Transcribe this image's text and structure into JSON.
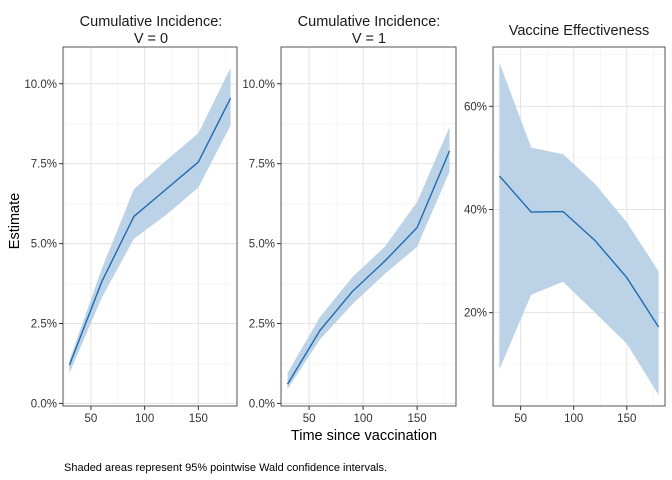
{
  "caption": "Shaded areas represent 95% pointwise Wald confidence intervals.",
  "shared_axes": {
    "xlabel": "Time since vaccination",
    "ylabel": "Estimate"
  },
  "colors": {
    "line": "#1f6bb0",
    "band": "#b7d0e6"
  },
  "chart_data": [
    {
      "type": "line",
      "title_lines": [
        "Cumulative Incidence:",
        "V = 0"
      ],
      "x": [
        30,
        60,
        90,
        120,
        150,
        180
      ],
      "estimate": [
        0.012,
        0.038,
        0.0585,
        0.067,
        0.0755,
        0.0955
      ],
      "lower": [
        0.0095,
        0.033,
        0.0515,
        0.059,
        0.0675,
        0.087
      ],
      "upper": [
        0.0135,
        0.042,
        0.067,
        0.076,
        0.0845,
        0.105
      ],
      "xlim": [
        24,
        186
      ],
      "ylim": [
        -0.0008,
        0.1115
      ],
      "xticks": [
        50,
        100,
        150
      ],
      "xtick_labels": [
        "50",
        "100",
        "150"
      ],
      "yticks": [
        0,
        0.025,
        0.05,
        0.075,
        0.1
      ],
      "ytick_labels": [
        "0.0%",
        "2.5%",
        "5.0%",
        "7.5%",
        "10.0%"
      ],
      "grid": true,
      "legend": "none"
    },
    {
      "type": "line",
      "title_lines": [
        "Cumulative Incidence:",
        "V = 1"
      ],
      "x": [
        30,
        60,
        90,
        120,
        150,
        180
      ],
      "estimate": [
        0.006,
        0.0228,
        0.035,
        0.0445,
        0.055,
        0.079
      ],
      "lower": [
        0.0045,
        0.02,
        0.031,
        0.0405,
        0.049,
        0.0725
      ],
      "upper": [
        0.0095,
        0.027,
        0.0395,
        0.049,
        0.063,
        0.0865
      ],
      "xlim": [
        24,
        186
      ],
      "ylim": [
        -0.0008,
        0.1115
      ],
      "xticks": [
        50,
        100,
        150
      ],
      "xtick_labels": [
        "50",
        "100",
        "150"
      ],
      "yticks": [
        0,
        0.025,
        0.05,
        0.075,
        0.1
      ],
      "ytick_labels": [
        "0.0%",
        "2.5%",
        "5.0%",
        "7.5%",
        "10.0%"
      ],
      "grid": true,
      "legend": "none"
    },
    {
      "type": "line",
      "title_lines": [
        "Vaccine Effectiveness"
      ],
      "x": [
        30,
        60,
        90,
        120,
        150,
        180
      ],
      "estimate": [
        0.465,
        0.395,
        0.396,
        0.34,
        0.268,
        0.172
      ],
      "lower": [
        0.09,
        0.235,
        0.26,
        0.2,
        0.14,
        0.04
      ],
      "upper": [
        0.685,
        0.52,
        0.507,
        0.45,
        0.375,
        0.28
      ],
      "xlim": [
        24,
        186
      ],
      "ylim": [
        0.019,
        0.715
      ],
      "xticks": [
        50,
        100,
        150
      ],
      "xtick_labels": [
        "50",
        "100",
        "150"
      ],
      "yticks": [
        0.2,
        0.4,
        0.6
      ],
      "ytick_labels": [
        "20%",
        "40%",
        "60%"
      ],
      "grid": true,
      "legend": "none"
    }
  ]
}
